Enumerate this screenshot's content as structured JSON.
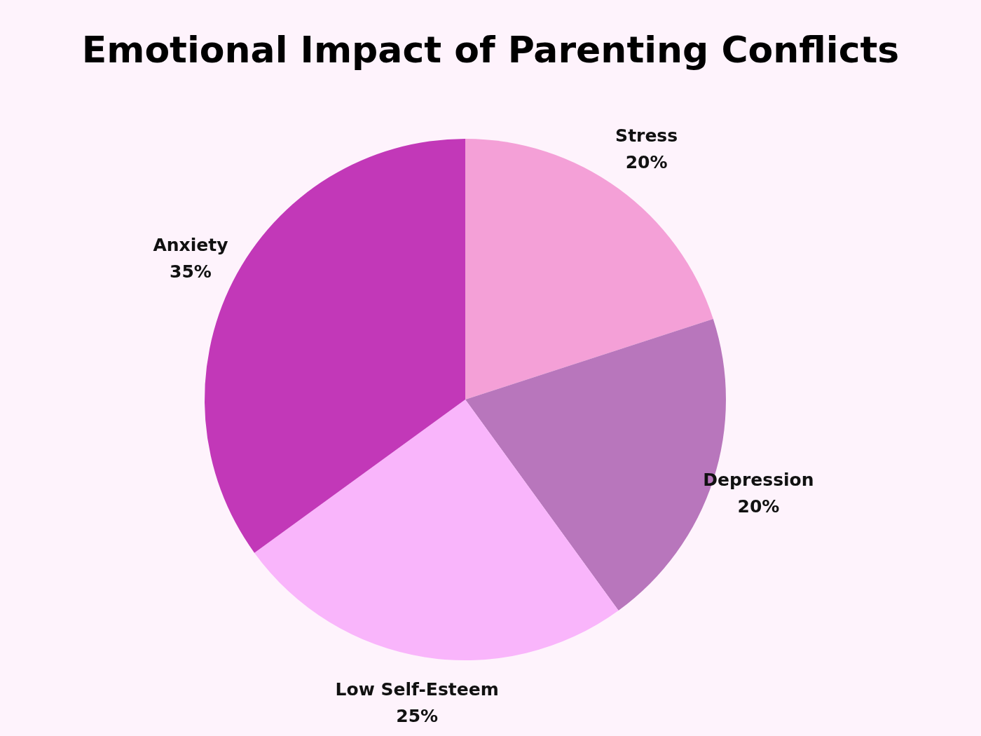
{
  "chart_data": {
    "type": "pie",
    "title": "Emotional Impact of Parenting Conflicts",
    "categories": [
      "Stress",
      "Depression",
      "Low Self-Esteem",
      "Anxiety"
    ],
    "values": [
      20,
      20,
      25,
      35
    ],
    "value_labels": [
      "20%",
      "20%",
      "25%",
      "35%"
    ],
    "colors": [
      "#f4a0d7",
      "#b876bc",
      "#f9b5fb",
      "#c238b8"
    ],
    "data_labels": true,
    "legend": false
  }
}
